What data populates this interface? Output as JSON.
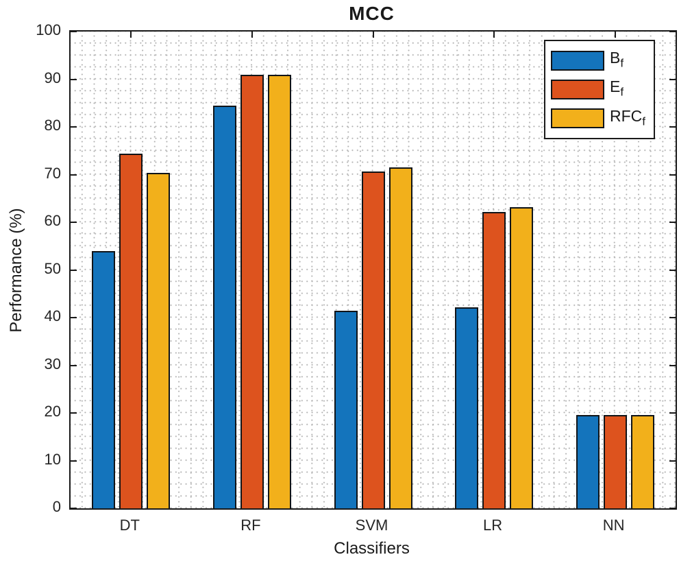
{
  "chart_data": {
    "type": "bar",
    "title": "MCC",
    "xlabel": "Classifiers",
    "ylabel": "Performance (%)",
    "categories": [
      "DT",
      "RF",
      "SVM",
      "LR",
      "NN"
    ],
    "series": [
      {
        "name": "B",
        "sub": "f",
        "color": "#1474bc",
        "values": [
          54.0,
          84.4,
          41.4,
          42.1,
          19.6
        ]
      },
      {
        "name": "E",
        "sub": "f",
        "color": "#dd531e",
        "values": [
          74.4,
          90.9,
          70.6,
          62.2,
          19.6
        ]
      },
      {
        "name": "RFC",
        "sub": "f",
        "color": "#f2b01b",
        "values": [
          70.3,
          90.9,
          71.5,
          63.1,
          19.6
        ]
      }
    ],
    "ylim": [
      0,
      100
    ],
    "yticks": [
      0,
      10,
      20,
      30,
      40,
      50,
      60,
      70,
      80,
      90,
      100
    ],
    "grid": "dotted-minor-both-axes",
    "legend_position": "top-right",
    "colors": {
      "axis": "#1a1a1a",
      "grid_dots": "#b3b3b3",
      "bar_outline": "#101418",
      "background": "#ffffff"
    }
  }
}
